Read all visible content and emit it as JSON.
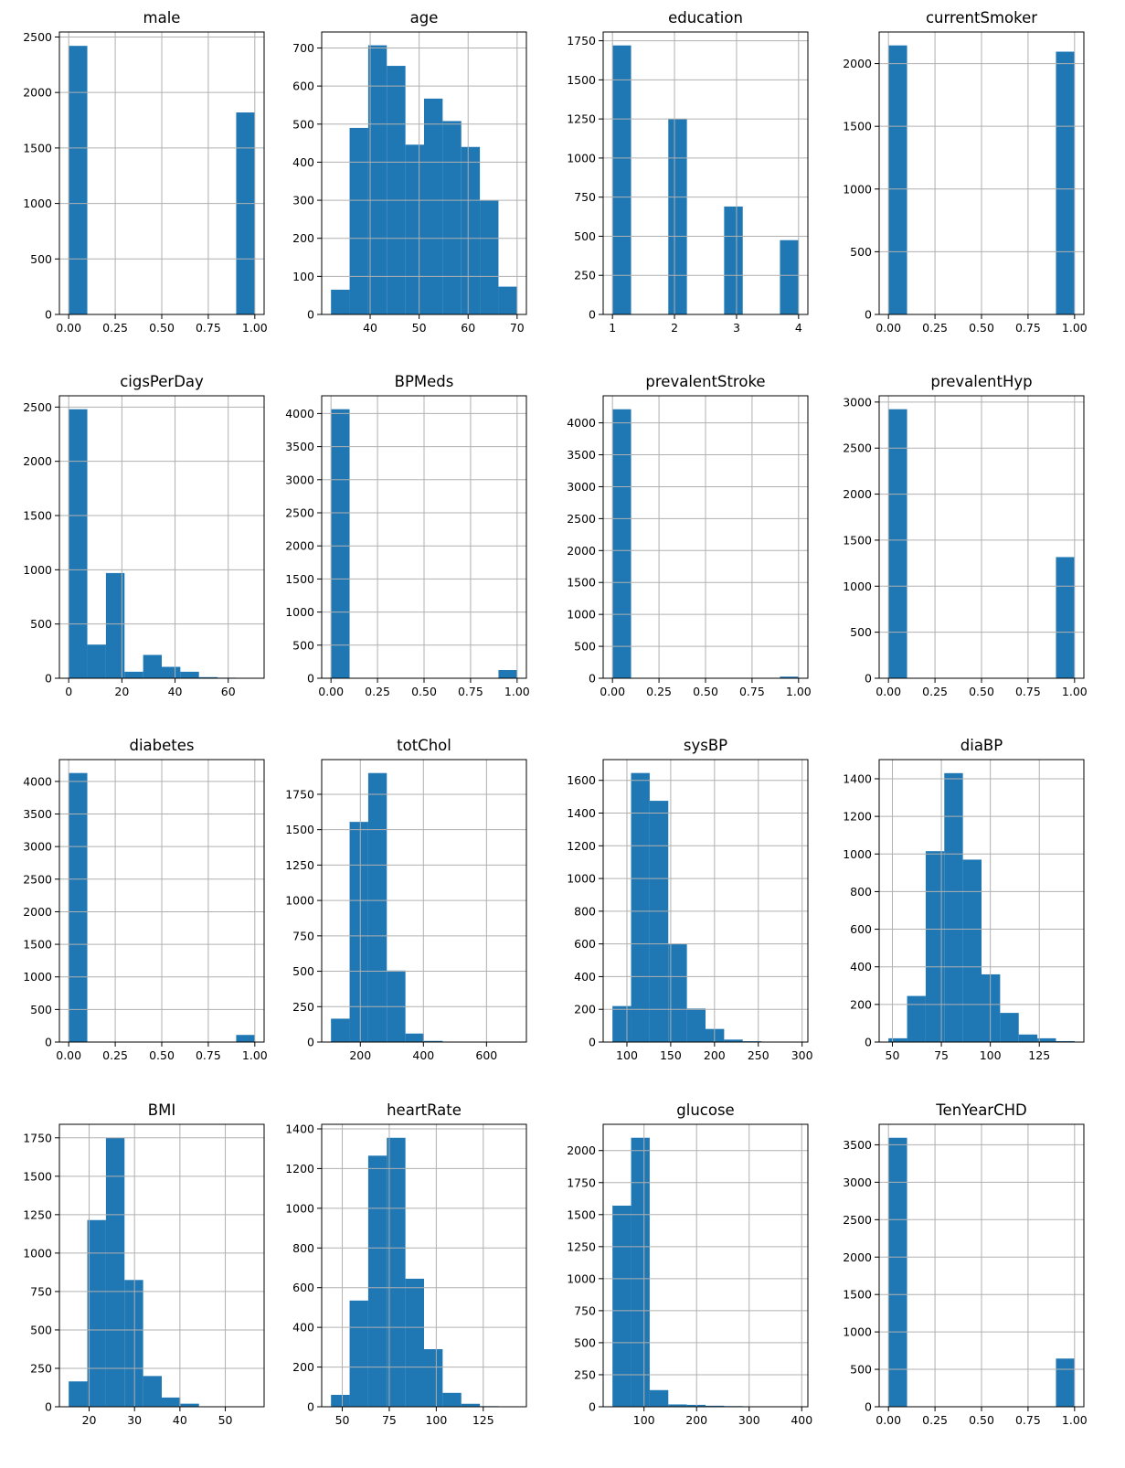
{
  "figure": {
    "bar_color": "#1f77b4",
    "grid": true
  },
  "chart_data": [
    {
      "type": "bar",
      "title": "male",
      "edges": [
        0,
        0.1,
        0.2,
        0.3,
        0.4,
        0.5,
        0.6,
        0.7,
        0.8,
        0.9,
        1.0
      ],
      "counts": [
        2420,
        0,
        0,
        0,
        0,
        0,
        0,
        0,
        0,
        1820
      ],
      "xlim": [
        -0.05,
        1.05
      ],
      "ylim": [
        0,
        2545
      ],
      "xticks": [
        0,
        0.25,
        0.5,
        0.75,
        1.0
      ],
      "xtick_labels": [
        "0.00",
        "0.25",
        "0.50",
        "0.75",
        "1.00"
      ],
      "yticks": [
        0,
        500,
        1000,
        1500,
        2000,
        2500
      ],
      "ytick_labels": [
        "0",
        "500",
        "1000",
        "1500",
        "2000",
        "2500"
      ]
    },
    {
      "type": "bar",
      "title": "age",
      "edges": [
        32,
        35.8,
        39.6,
        43.4,
        47.2,
        51,
        54.8,
        58.6,
        62.4,
        66.2,
        70
      ],
      "counts": [
        65,
        490,
        707,
        653,
        446,
        567,
        508,
        440,
        300,
        73
      ],
      "xlim": [
        30.1,
        71.9
      ],
      "ylim": [
        0,
        742
      ],
      "xticks": [
        40,
        50,
        60,
        70
      ],
      "xtick_labels": [
        "40",
        "50",
        "60",
        "70"
      ],
      "yticks": [
        0,
        100,
        200,
        300,
        400,
        500,
        600,
        700
      ],
      "ytick_labels": [
        "0",
        "100",
        "200",
        "300",
        "400",
        "500",
        "600",
        "700"
      ]
    },
    {
      "type": "bar",
      "title": "education",
      "edges": [
        1,
        1.3,
        1.6,
        1.9,
        2.2,
        2.5,
        2.8,
        3.1,
        3.4,
        3.7,
        4
      ],
      "counts": [
        1720,
        0,
        0,
        1250,
        0,
        0,
        690,
        0,
        0,
        475
      ],
      "xlim": [
        0.85,
        4.15
      ],
      "ylim": [
        0,
        1806
      ],
      "xticks": [
        1,
        2,
        3,
        4
      ],
      "xtick_labels": [
        "1",
        "2",
        "3",
        "4"
      ],
      "yticks": [
        0,
        250,
        500,
        750,
        1000,
        1250,
        1500,
        1750
      ],
      "ytick_labels": [
        "0",
        "250",
        "500",
        "750",
        "1000",
        "1250",
        "1500",
        "1750"
      ]
    },
    {
      "type": "bar",
      "title": "currentSmoker",
      "edges": [
        0,
        0.1,
        0.2,
        0.3,
        0.4,
        0.5,
        0.6,
        0.7,
        0.8,
        0.9,
        1.0
      ],
      "counts": [
        2145,
        0,
        0,
        0,
        0,
        0,
        0,
        0,
        0,
        2095
      ],
      "xlim": [
        -0.05,
        1.05
      ],
      "ylim": [
        0,
        2252
      ],
      "xticks": [
        0,
        0.25,
        0.5,
        0.75,
        1.0
      ],
      "xtick_labels": [
        "0.00",
        "0.25",
        "0.50",
        "0.75",
        "1.00"
      ],
      "yticks": [
        0,
        500,
        1000,
        1500,
        2000
      ],
      "ytick_labels": [
        "0",
        "500",
        "1000",
        "1500",
        "2000"
      ]
    },
    {
      "type": "bar",
      "title": "cigsPerDay",
      "edges": [
        0,
        7,
        14,
        21,
        28,
        35,
        42,
        49,
        56,
        63,
        70
      ],
      "counts": [
        2480,
        310,
        970,
        60,
        215,
        105,
        60,
        10,
        5,
        0
      ],
      "xlim": [
        -3.5,
        73.5
      ],
      "ylim": [
        0,
        2604
      ],
      "xticks": [
        0,
        20,
        40,
        60
      ],
      "xtick_labels": [
        "0",
        "20",
        "40",
        "60"
      ],
      "yticks": [
        0,
        500,
        1000,
        1500,
        2000,
        2500
      ],
      "ytick_labels": [
        "0",
        "500",
        "1000",
        "1500",
        "2000",
        "2500"
      ]
    },
    {
      "type": "bar",
      "title": "BPMeds",
      "edges": [
        0,
        0.1,
        0.2,
        0.3,
        0.4,
        0.5,
        0.6,
        0.7,
        0.8,
        0.9,
        1.0
      ],
      "counts": [
        4065,
        0,
        0,
        0,
        0,
        0,
        0,
        0,
        0,
        124
      ],
      "xlim": [
        -0.05,
        1.05
      ],
      "ylim": [
        0,
        4268
      ],
      "xticks": [
        0,
        0.25,
        0.5,
        0.75,
        1.0
      ],
      "xtick_labels": [
        "0.00",
        "0.25",
        "0.50",
        "0.75",
        "1.00"
      ],
      "yticks": [
        0,
        500,
        1000,
        1500,
        2000,
        2500,
        3000,
        3500,
        4000
      ],
      "ytick_labels": [
        "0",
        "500",
        "1000",
        "1500",
        "2000",
        "2500",
        "3000",
        "3500",
        "4000"
      ]
    },
    {
      "type": "bar",
      "title": "prevalentStroke",
      "edges": [
        0,
        0.1,
        0.2,
        0.3,
        0.4,
        0.5,
        0.6,
        0.7,
        0.8,
        0.9,
        1.0
      ],
      "counts": [
        4213,
        0,
        0,
        0,
        0,
        0,
        0,
        0,
        0,
        25
      ],
      "xlim": [
        -0.05,
        1.05
      ],
      "ylim": [
        0,
        4424
      ],
      "xticks": [
        0,
        0.25,
        0.5,
        0.75,
        1.0
      ],
      "xtick_labels": [
        "0.00",
        "0.25",
        "0.50",
        "0.75",
        "1.00"
      ],
      "yticks": [
        0,
        500,
        1000,
        1500,
        2000,
        2500,
        3000,
        3500,
        4000
      ],
      "ytick_labels": [
        "0",
        "500",
        "1000",
        "1500",
        "2000",
        "2500",
        "3000",
        "3500",
        "4000"
      ]
    },
    {
      "type": "bar",
      "title": "prevalentHyp",
      "edges": [
        0,
        0.1,
        0.2,
        0.3,
        0.4,
        0.5,
        0.6,
        0.7,
        0.8,
        0.9,
        1.0
      ],
      "counts": [
        2922,
        0,
        0,
        0,
        0,
        0,
        0,
        0,
        0,
        1316
      ],
      "xlim": [
        -0.05,
        1.05
      ],
      "ylim": [
        0,
        3068
      ],
      "xticks": [
        0,
        0.25,
        0.5,
        0.75,
        1.0
      ],
      "xtick_labels": [
        "0.00",
        "0.25",
        "0.50",
        "0.75",
        "1.00"
      ],
      "yticks": [
        0,
        500,
        1000,
        1500,
        2000,
        2500,
        3000
      ],
      "ytick_labels": [
        "0",
        "500",
        "1000",
        "1500",
        "2000",
        "2500",
        "3000"
      ]
    },
    {
      "type": "bar",
      "title": "diabetes",
      "edges": [
        0,
        0.1,
        0.2,
        0.3,
        0.4,
        0.5,
        0.6,
        0.7,
        0.8,
        0.9,
        1.0
      ],
      "counts": [
        4129,
        0,
        0,
        0,
        0,
        0,
        0,
        0,
        0,
        109
      ],
      "xlim": [
        -0.05,
        1.05
      ],
      "ylim": [
        0,
        4335
      ],
      "xticks": [
        0,
        0.25,
        0.5,
        0.75,
        1.0
      ],
      "xtick_labels": [
        "0.00",
        "0.25",
        "0.50",
        "0.75",
        "1.00"
      ],
      "yticks": [
        0,
        500,
        1000,
        1500,
        2000,
        2500,
        3000,
        3500,
        4000
      ],
      "ytick_labels": [
        "0",
        "500",
        "1000",
        "1500",
        "2000",
        "2500",
        "3000",
        "3500",
        "4000"
      ]
    },
    {
      "type": "bar",
      "title": "totChol",
      "edges": [
        107,
        166,
        225,
        284,
        343,
        402,
        461,
        520,
        579,
        638,
        697
      ],
      "counts": [
        165,
        1555,
        1900,
        505,
        60,
        8,
        2,
        0,
        0,
        1
      ],
      "xlim": [
        77.5,
        726.5
      ],
      "ylim": [
        0,
        1995
      ],
      "xticks": [
        200,
        400,
        600
      ],
      "xtick_labels": [
        "200",
        "400",
        "600"
      ],
      "yticks": [
        0,
        250,
        500,
        750,
        1000,
        1250,
        1500,
        1750
      ],
      "ytick_labels": [
        "0",
        "250",
        "500",
        "750",
        "1000",
        "1250",
        "1500",
        "1750"
      ]
    },
    {
      "type": "bar",
      "title": "sysBP",
      "edges": [
        83.5,
        104.75,
        126,
        147.25,
        168.5,
        189.75,
        211,
        232.25,
        253.5,
        274.75,
        296
      ],
      "counts": [
        220,
        1645,
        1475,
        600,
        205,
        80,
        15,
        5,
        2,
        1
      ],
      "xlim": [
        72.9,
        306.6
      ],
      "ylim": [
        0,
        1727
      ],
      "xticks": [
        100,
        150,
        200,
        250,
        300
      ],
      "xtick_labels": [
        "100",
        "150",
        "200",
        "250",
        "300"
      ],
      "yticks": [
        0,
        200,
        400,
        600,
        800,
        1000,
        1200,
        1400,
        1600
      ],
      "ytick_labels": [
        "0",
        "200",
        "400",
        "600",
        "800",
        "1000",
        "1200",
        "1400",
        "1600"
      ]
    },
    {
      "type": "bar",
      "title": "diaBP",
      "edges": [
        48,
        57.5,
        67,
        76.5,
        86,
        95.5,
        105,
        114.5,
        124,
        133.5,
        143
      ],
      "counts": [
        20,
        245,
        1015,
        1430,
        970,
        360,
        155,
        40,
        20,
        5
      ],
      "xlim": [
        43.25,
        147.75
      ],
      "ylim": [
        0,
        1502
      ],
      "xticks": [
        50,
        75,
        100,
        125
      ],
      "xtick_labels": [
        "50",
        "75",
        "100",
        "125"
      ],
      "yticks": [
        0,
        200,
        400,
        600,
        800,
        1000,
        1200,
        1400
      ],
      "ytick_labels": [
        "0",
        "200",
        "400",
        "600",
        "800",
        "1000",
        "1200",
        "1400"
      ]
    },
    {
      "type": "bar",
      "title": "BMI",
      "edges": [
        15.5,
        19.6,
        23.7,
        27.8,
        31.9,
        36,
        40.1,
        44.2,
        48.3,
        52.4,
        56.5
      ],
      "counts": [
        165,
        1215,
        1750,
        825,
        200,
        60,
        20,
        2,
        1,
        1
      ],
      "xlim": [
        13.45,
        58.55
      ],
      "ylim": [
        0,
        1838
      ],
      "xticks": [
        20,
        30,
        40,
        50
      ],
      "xtick_labels": [
        "20",
        "30",
        "40",
        "50"
      ],
      "yticks": [
        0,
        250,
        500,
        750,
        1000,
        1250,
        1500,
        1750
      ],
      "ytick_labels": [
        "0",
        "250",
        "500",
        "750",
        "1000",
        "1250",
        "1500",
        "1750"
      ]
    },
    {
      "type": "bar",
      "title": "heartRate",
      "edges": [
        44,
        53.9,
        63.8,
        73.7,
        83.6,
        93.5,
        103.4,
        113.3,
        123.2,
        133.1,
        143
      ],
      "counts": [
        60,
        535,
        1265,
        1355,
        645,
        290,
        70,
        15,
        3,
        1
      ],
      "xlim": [
        39.05,
        147.95
      ],
      "ylim": [
        0,
        1423
      ],
      "xticks": [
        50,
        75,
        100,
        125
      ],
      "xtick_labels": [
        "50",
        "75",
        "100",
        "125"
      ],
      "yticks": [
        0,
        200,
        400,
        600,
        800,
        1000,
        1200,
        1400
      ],
      "ytick_labels": [
        "0",
        "200",
        "400",
        "600",
        "800",
        "1000",
        "1200",
        "1400"
      ]
    },
    {
      "type": "bar",
      "title": "glucose",
      "edges": [
        40,
        75.4,
        110.8,
        146.2,
        181.6,
        217,
        252.4,
        287.8,
        323.2,
        358.6,
        394
      ],
      "counts": [
        1570,
        2100,
        130,
        18,
        15,
        8,
        5,
        3,
        2,
        3
      ],
      "xlim": [
        22.3,
        411.7
      ],
      "ylim": [
        0,
        2205
      ],
      "xticks": [
        100,
        200,
        300,
        400
      ],
      "xtick_labels": [
        "100",
        "200",
        "300",
        "400"
      ],
      "yticks": [
        0,
        250,
        500,
        750,
        1000,
        1250,
        1500,
        1750,
        2000
      ],
      "ytick_labels": [
        "0",
        "250",
        "500",
        "750",
        "1000",
        "1250",
        "1500",
        "1750",
        "2000"
      ]
    },
    {
      "type": "bar",
      "title": "TenYearCHD",
      "edges": [
        0,
        0.1,
        0.2,
        0.3,
        0.4,
        0.5,
        0.6,
        0.7,
        0.8,
        0.9,
        1.0
      ],
      "counts": [
        3594,
        0,
        0,
        0,
        0,
        0,
        0,
        0,
        0,
        644
      ],
      "xlim": [
        -0.05,
        1.05
      ],
      "ylim": [
        0,
        3774
      ],
      "xticks": [
        0,
        0.25,
        0.5,
        0.75,
        1.0
      ],
      "xtick_labels": [
        "0.00",
        "0.25",
        "0.50",
        "0.75",
        "1.00"
      ],
      "yticks": [
        0,
        500,
        1000,
        1500,
        2000,
        2500,
        3000,
        3500
      ],
      "ytick_labels": [
        "0",
        "500",
        "1000",
        "1500",
        "2000",
        "2500",
        "3000",
        "3500"
      ]
    }
  ]
}
